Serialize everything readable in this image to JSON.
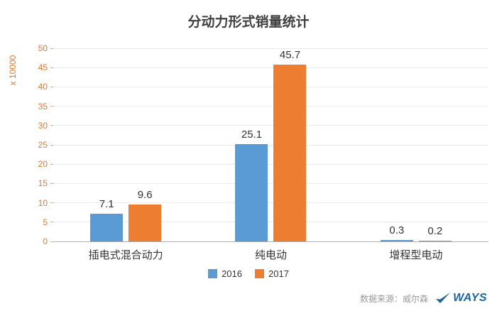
{
  "chart_data": {
    "type": "bar",
    "title": "分动力形式销量统计",
    "ylabel": "x 10000",
    "xlabel": "",
    "categories": [
      "插电式混合动力",
      "纯电动",
      "增程型电动"
    ],
    "series": [
      {
        "name": "2016",
        "color": "#5B9BD5",
        "values": [
          7.1,
          25.1,
          0.3
        ]
      },
      {
        "name": "2017",
        "color": "#ED7D31",
        "values": [
          9.6,
          45.7,
          0.2
        ]
      }
    ],
    "ylim": [
      0,
      50
    ],
    "ytick_step": 5,
    "grid": true,
    "legend_position": "bottom"
  },
  "footer": {
    "source_text": "数据来源：威尔森",
    "logo_text": "WAYS",
    "logo_icon": "check-swoosh-icon"
  },
  "colors": {
    "series_2016": "#5B9BD5",
    "series_2017": "#ED7D31",
    "axis_text": "#E8752A",
    "grid_line": "#e9e9e9",
    "axis_line": "#b3b3b3",
    "title_text": "#404040",
    "label_text": "#333333",
    "footer_text": "#999999",
    "logo_blue": "#1666A5"
  }
}
